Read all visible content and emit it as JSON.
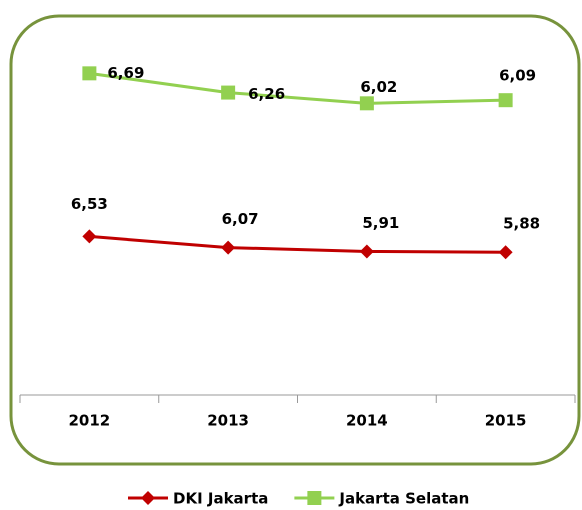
{
  "chart_data": {
    "type": "line",
    "categories": [
      "2012",
      "2013",
      "2014",
      "2015"
    ],
    "series": [
      {
        "name": "DKI Jakarta",
        "color": "#c00000",
        "marker": "diamond",
        "values": [
          6.53,
          6.07,
          5.91,
          5.88
        ],
        "value_labels": [
          "6,53",
          "6,07",
          "5,91",
          "5,88"
        ]
      },
      {
        "name": "Jakarta Selatan",
        "color": "#92d050",
        "marker": "square",
        "axis": "y2",
        "values": [
          6.69,
          6.26,
          6.02,
          6.09
        ],
        "value_labels": [
          "6,69",
          "6,26",
          "6,02",
          "6,09"
        ]
      }
    ],
    "ylim": [
      0,
      14
    ],
    "y2lim": [
      -0.5,
      7.1
    ],
    "grid": false,
    "legend": "bottom",
    "border_color": "#77933c"
  }
}
